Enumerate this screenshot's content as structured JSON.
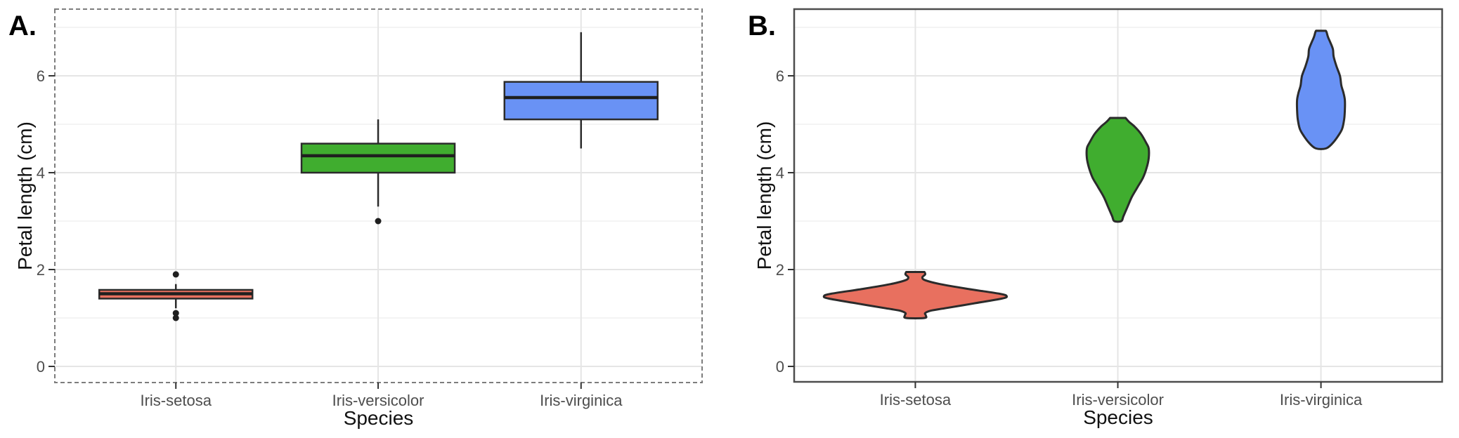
{
  "figure": {
    "background": "#ffffff",
    "xlabel": "Species",
    "ylabel": "Petal length (cm)",
    "categories": [
      "Iris-setosa",
      "Iris-versicolor",
      "Iris-virginica"
    ],
    "y_ticks": [
      0,
      2,
      4,
      6
    ],
    "y_minor_ticks": [
      1,
      3,
      5,
      7
    ],
    "colors": {
      "setosa": "#e8705f",
      "versicolor": "#40ad2f",
      "virginica": "#6992f5",
      "geom_stroke": "#2b2b2b",
      "median_line": "#1f1f1f",
      "outlier": "#1f1f1f",
      "grid_major": "#e5e5e5",
      "grid_minor": "#f1f1f1",
      "tick_text": "#4d4d4d",
      "title_text": "#111111",
      "panel_border_a": "#7d7d7d",
      "panel_border_b": "#4d4d4d",
      "tick_mark": "#333333"
    }
  },
  "chart_data": [
    {
      "type": "box",
      "panel_label": "A.",
      "title": "",
      "xlabel": "Species",
      "ylabel": "Petal length (cm)",
      "categories": [
        "Iris-setosa",
        "Iris-versicolor",
        "Iris-virginica"
      ],
      "ylim": [
        -0.35,
        7.4
      ],
      "y_ticks": [
        0,
        2,
        4,
        6
      ],
      "grid": "major+minor",
      "legend": "none",
      "series": [
        {
          "name": "Iris-setosa",
          "color_key": "setosa",
          "q1": 1.4,
          "median": 1.5,
          "q3": 1.58,
          "whisker_low": 1.2,
          "whisker_high": 1.7,
          "outliers": [
            1.9,
            1.1,
            1.0
          ]
        },
        {
          "name": "Iris-versicolor",
          "color_key": "versicolor",
          "q1": 4.0,
          "median": 4.35,
          "q3": 4.6,
          "whisker_low": 3.3,
          "whisker_high": 5.1,
          "outliers": [
            3.0
          ]
        },
        {
          "name": "Iris-virginica",
          "color_key": "virginica",
          "q1": 5.1,
          "median": 5.55,
          "q3": 5.875,
          "whisker_low": 4.5,
          "whisker_high": 6.9,
          "outliers": []
        }
      ]
    },
    {
      "type": "violin",
      "panel_label": "B.",
      "title": "",
      "xlabel": "Species",
      "ylabel": "Petal length (cm)",
      "categories": [
        "Iris-setosa",
        "Iris-versicolor",
        "Iris-virginica"
      ],
      "ylim": [
        -0.35,
        7.4
      ],
      "y_ticks": [
        0,
        2,
        4,
        6
      ],
      "grid": "major+minor",
      "legend": "none",
      "series": [
        {
          "name": "Iris-setosa",
          "color_key": "setosa",
          "min": 1.0,
          "max": 1.95,
          "profile": [
            [
              1.0,
              13
            ],
            [
              1.05,
              15
            ],
            [
              1.1,
              14
            ],
            [
              1.15,
              22
            ],
            [
              1.2,
              42
            ],
            [
              1.3,
              83
            ],
            [
              1.4,
              123
            ],
            [
              1.45,
              130
            ],
            [
              1.5,
              120
            ],
            [
              1.6,
              75
            ],
            [
              1.7,
              35
            ],
            [
              1.78,
              14
            ],
            [
              1.84,
              10
            ],
            [
              1.9,
              14
            ],
            [
              1.95,
              13
            ]
          ]
        },
        {
          "name": "Iris-versicolor",
          "color_key": "versicolor",
          "min": 3.0,
          "max": 5.13,
          "profile": [
            [
              3.0,
              5
            ],
            [
              3.1,
              8
            ],
            [
              3.3,
              14
            ],
            [
              3.5,
              20
            ],
            [
              3.7,
              28
            ],
            [
              3.9,
              36
            ],
            [
              4.1,
              41
            ],
            [
              4.3,
              44
            ],
            [
              4.5,
              44
            ],
            [
              4.6,
              41
            ],
            [
              4.8,
              33
            ],
            [
              4.95,
              24
            ],
            [
              5.05,
              16
            ],
            [
              5.13,
              11
            ]
          ]
        },
        {
          "name": "Iris-virginica",
          "color_key": "virginica",
          "min": 4.5,
          "max": 6.93,
          "profile": [
            [
              4.5,
              7
            ],
            [
              4.6,
              16
            ],
            [
              4.75,
              24
            ],
            [
              4.9,
              30
            ],
            [
              5.1,
              33
            ],
            [
              5.3,
              34
            ],
            [
              5.5,
              34
            ],
            [
              5.65,
              32
            ],
            [
              5.8,
              29
            ],
            [
              6.0,
              27
            ],
            [
              6.2,
              22
            ],
            [
              6.4,
              18
            ],
            [
              6.55,
              17
            ],
            [
              6.7,
              13
            ],
            [
              6.8,
              10
            ],
            [
              6.9,
              8
            ],
            [
              6.93,
              7
            ]
          ]
        }
      ]
    }
  ]
}
